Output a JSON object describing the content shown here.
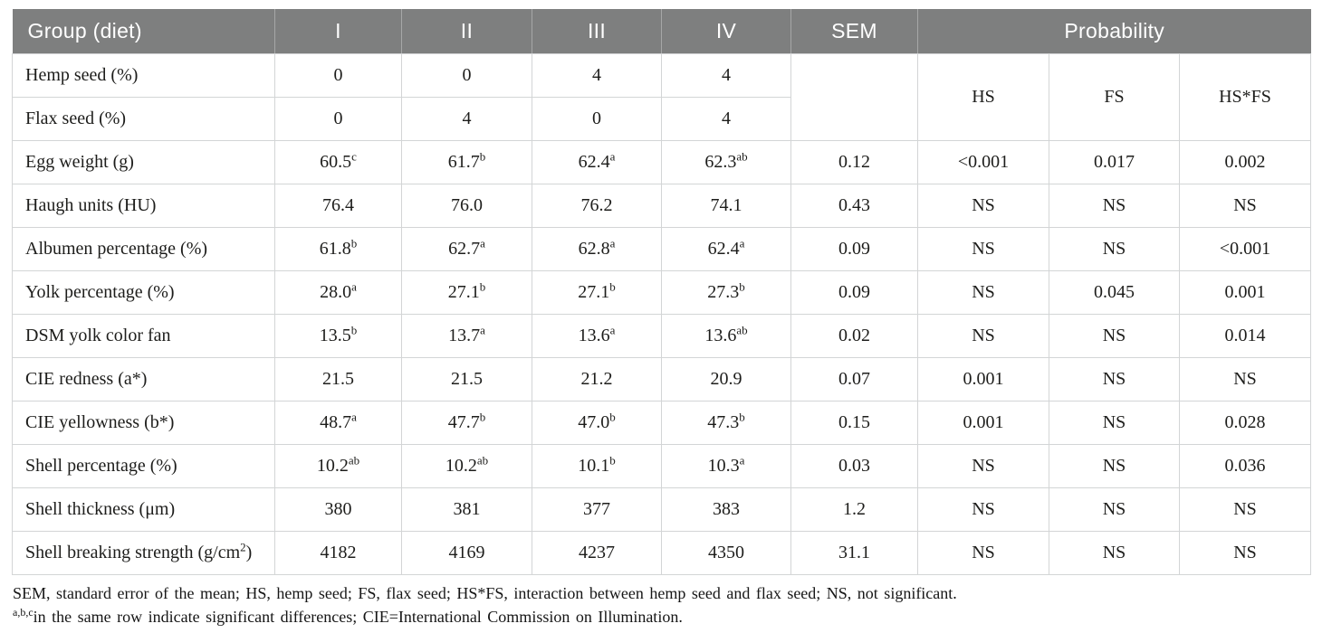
{
  "colors": {
    "header_bg": "#7e7f7f",
    "header_text": "#ffffff",
    "border": "#d3d5d6",
    "body_text": "#1d1d1b"
  },
  "table": {
    "header": {
      "group_label": "Group (diet)",
      "diet_columns": [
        "I",
        "II",
        "III",
        "IV"
      ],
      "sem_label": "SEM",
      "probability_label": "Probability",
      "prob_subcolumns": [
        "HS",
        "FS",
        "HS*FS"
      ]
    },
    "diet_rows": [
      {
        "label": "Hemp seed (%)",
        "values": [
          "0",
          "0",
          "4",
          "4"
        ]
      },
      {
        "label": "Flax seed (%)",
        "values": [
          "0",
          "4",
          "0",
          "4"
        ]
      }
    ],
    "data_rows": [
      {
        "label": [
          {
            "t": "Egg weight (g)"
          }
        ],
        "cells": [
          [
            {
              "t": "60.5"
            },
            {
              "t": "c",
              "sup": true
            }
          ],
          [
            {
              "t": "61.7"
            },
            {
              "t": "b",
              "sup": true
            }
          ],
          [
            {
              "t": "62.4"
            },
            {
              "t": "a",
              "sup": true
            }
          ],
          [
            {
              "t": "62.3"
            },
            {
              "t": "ab",
              "sup": true
            }
          ],
          [
            {
              "t": "0.12"
            }
          ],
          [
            {
              "t": "<0.001"
            }
          ],
          [
            {
              "t": "0.017"
            }
          ],
          [
            {
              "t": "0.002"
            }
          ]
        ]
      },
      {
        "label": [
          {
            "t": "Haugh units (HU)"
          }
        ],
        "cells": [
          [
            {
              "t": "76.4"
            }
          ],
          [
            {
              "t": "76.0"
            }
          ],
          [
            {
              "t": "76.2"
            }
          ],
          [
            {
              "t": "74.1"
            }
          ],
          [
            {
              "t": "0.43"
            }
          ],
          [
            {
              "t": "NS"
            }
          ],
          [
            {
              "t": "NS"
            }
          ],
          [
            {
              "t": "NS"
            }
          ]
        ]
      },
      {
        "label": [
          {
            "t": "Albumen percentage (%)"
          }
        ],
        "cells": [
          [
            {
              "t": "61.8"
            },
            {
              "t": "b",
              "sup": true
            }
          ],
          [
            {
              "t": "62.7"
            },
            {
              "t": "a",
              "sup": true
            }
          ],
          [
            {
              "t": "62.8"
            },
            {
              "t": "a",
              "sup": true
            }
          ],
          [
            {
              "t": "62.4"
            },
            {
              "t": "a",
              "sup": true
            }
          ],
          [
            {
              "t": "0.09"
            }
          ],
          [
            {
              "t": "NS"
            }
          ],
          [
            {
              "t": "NS"
            }
          ],
          [
            {
              "t": "<0.001"
            }
          ]
        ]
      },
      {
        "label": [
          {
            "t": "Yolk percentage (%)"
          }
        ],
        "cells": [
          [
            {
              "t": "28.0"
            },
            {
              "t": "a",
              "sup": true
            }
          ],
          [
            {
              "t": "27.1"
            },
            {
              "t": "b",
              "sup": true
            }
          ],
          [
            {
              "t": "27.1"
            },
            {
              "t": "b",
              "sup": true
            }
          ],
          [
            {
              "t": "27.3"
            },
            {
              "t": "b",
              "sup": true
            }
          ],
          [
            {
              "t": "0.09"
            }
          ],
          [
            {
              "t": "NS"
            }
          ],
          [
            {
              "t": "0.045"
            }
          ],
          [
            {
              "t": "0.001"
            }
          ]
        ]
      },
      {
        "label": [
          {
            "t": "DSM yolk color fan"
          }
        ],
        "cells": [
          [
            {
              "t": "13.5"
            },
            {
              "t": "b",
              "sup": true
            }
          ],
          [
            {
              "t": "13.7"
            },
            {
              "t": "a",
              "sup": true
            }
          ],
          [
            {
              "t": "13.6"
            },
            {
              "t": "a",
              "sup": true
            }
          ],
          [
            {
              "t": "13.6"
            },
            {
              "t": "ab",
              "sup": true
            }
          ],
          [
            {
              "t": "0.02"
            }
          ],
          [
            {
              "t": "NS"
            }
          ],
          [
            {
              "t": "NS"
            }
          ],
          [
            {
              "t": "0.014"
            }
          ]
        ]
      },
      {
        "label": [
          {
            "t": "CIE redness (a*)"
          }
        ],
        "cells": [
          [
            {
              "t": "21.5"
            }
          ],
          [
            {
              "t": "21.5"
            }
          ],
          [
            {
              "t": "21.2"
            }
          ],
          [
            {
              "t": "20.9"
            }
          ],
          [
            {
              "t": "0.07"
            }
          ],
          [
            {
              "t": "0.001"
            }
          ],
          [
            {
              "t": "NS"
            }
          ],
          [
            {
              "t": "NS"
            }
          ]
        ]
      },
      {
        "label": [
          {
            "t": "CIE yellowness (b*)"
          }
        ],
        "cells": [
          [
            {
              "t": "48.7"
            },
            {
              "t": "a",
              "sup": true
            }
          ],
          [
            {
              "t": "47.7"
            },
            {
              "t": "b",
              "sup": true
            }
          ],
          [
            {
              "t": "47.0"
            },
            {
              "t": "b",
              "sup": true
            }
          ],
          [
            {
              "t": "47.3"
            },
            {
              "t": "b",
              "sup": true
            }
          ],
          [
            {
              "t": "0.15"
            }
          ],
          [
            {
              "t": "0.001"
            }
          ],
          [
            {
              "t": "NS"
            }
          ],
          [
            {
              "t": "0.028"
            }
          ]
        ]
      },
      {
        "label": [
          {
            "t": "Shell percentage (%)"
          }
        ],
        "cells": [
          [
            {
              "t": "10.2"
            },
            {
              "t": "ab",
              "sup": true
            }
          ],
          [
            {
              "t": "10.2"
            },
            {
              "t": "ab",
              "sup": true
            }
          ],
          [
            {
              "t": "10.1"
            },
            {
              "t": "b",
              "sup": true
            }
          ],
          [
            {
              "t": "10.3"
            },
            {
              "t": "a",
              "sup": true
            }
          ],
          [
            {
              "t": "0.03"
            }
          ],
          [
            {
              "t": "NS"
            }
          ],
          [
            {
              "t": "NS"
            }
          ],
          [
            {
              "t": "0.036"
            }
          ]
        ]
      },
      {
        "label": [
          {
            "t": "Shell thickness (μm)"
          }
        ],
        "cells": [
          [
            {
              "t": "380"
            }
          ],
          [
            {
              "t": "381"
            }
          ],
          [
            {
              "t": "377"
            }
          ],
          [
            {
              "t": "383"
            }
          ],
          [
            {
              "t": "1.2"
            }
          ],
          [
            {
              "t": "NS"
            }
          ],
          [
            {
              "t": "NS"
            }
          ],
          [
            {
              "t": "NS"
            }
          ]
        ]
      },
      {
        "label": [
          {
            "t": "Shell breaking strength (g/cm"
          },
          {
            "t": "2",
            "sup": true
          },
          {
            "t": ")"
          }
        ],
        "cells": [
          [
            {
              "t": "4182"
            }
          ],
          [
            {
              "t": "4169"
            }
          ],
          [
            {
              "t": "4237"
            }
          ],
          [
            {
              "t": "4350"
            }
          ],
          [
            {
              "t": "31.1"
            }
          ],
          [
            {
              "t": "NS"
            }
          ],
          [
            {
              "t": "NS"
            }
          ],
          [
            {
              "t": "NS"
            }
          ]
        ]
      }
    ],
    "footnotes": [
      [
        {
          "t": "SEM, standard error of the mean; HS, hemp seed; FS, flax seed; HS*FS, interaction between hemp seed and flax seed; NS, not significant."
        }
      ],
      [
        {
          "t": "a,b,c",
          "sup": true
        },
        {
          "t": "in the same row indicate significant differences; CIE=International Commission on Illumination."
        }
      ]
    ]
  }
}
